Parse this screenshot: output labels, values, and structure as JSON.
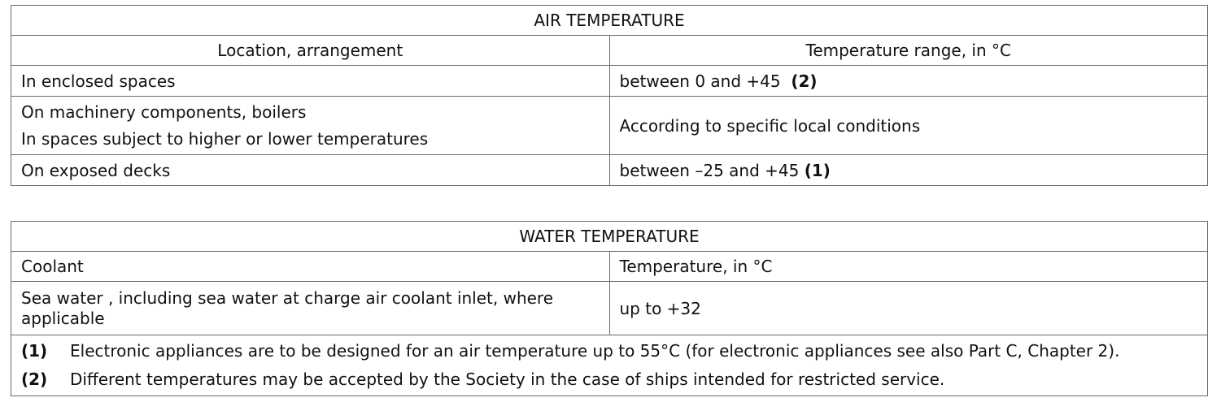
{
  "air": {
    "title": "AIR TEMPERATURE",
    "headers": [
      "Location, arrangement",
      "Temperature range, in °C"
    ],
    "rows": [
      {
        "location": "In enclosed spaces",
        "range": "between 0 and +45",
        "note": "(2)"
      },
      {
        "location_lines": [
          "On machinery components, boilers",
          "In spaces subject to higher or lower temperatures"
        ],
        "range": "According to specific local conditions"
      },
      {
        "location": "On exposed decks",
        "range": "between –25 and +45",
        "note": "(1)"
      }
    ]
  },
  "water": {
    "title": "WATER TEMPERATURE",
    "headers": [
      "Coolant",
      "Temperature, in °C"
    ],
    "rows": [
      {
        "coolant_lines": [
          "Sea water , including  sea water at charge air coolant inlet, where",
          "applicable"
        ],
        "temp": "up to +32"
      }
    ]
  },
  "notes": [
    {
      "num": "(1)",
      "text": "Electronic appliances are to be designed for an air temperature up to 55°C (for electronic appliances see also Part C, Chapter 2)."
    },
    {
      "num": "(2)",
      "text": "Different temperatures may be accepted by the Society in the case of ships intended for restricted service."
    }
  ]
}
